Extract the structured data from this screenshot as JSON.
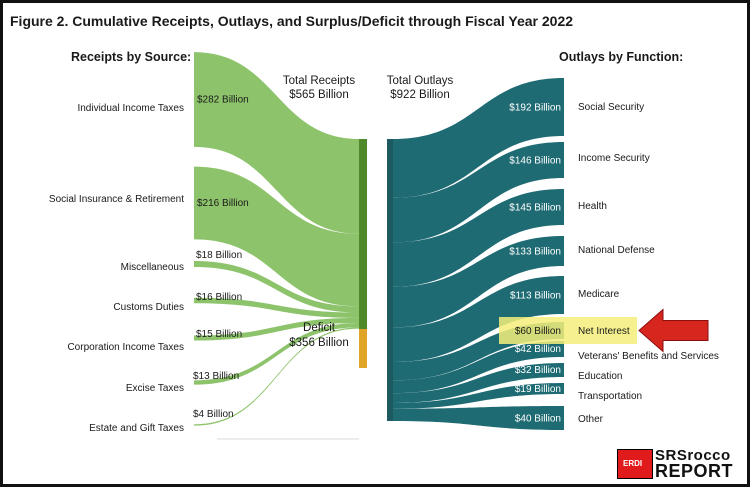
{
  "title": "Figure 2. Cumulative Receipts, Outlays, and Surplus/Deficit through Fiscal Year 2022",
  "receipts_header": "Receipts by Source:",
  "outlays_header": "Outlays by Function:",
  "total_receipts_line1": "Total Receipts",
  "total_receipts_line2": "$565 Billion",
  "total_outlays_line1": "Total Outlays",
  "total_outlays_line2": "$922 Billion",
  "deficit_line1": "Deficit",
  "deficit_line2": "$356 Billion",
  "colors": {
    "receipts": "#8dc36b",
    "receipts_bar": "#4f8a2a",
    "deficit": "#e0a526",
    "outlays": "#1f6b73",
    "outlays_bar": "#1d5a60",
    "highlight": "#f4ef7a",
    "arrow": "#d7261e"
  },
  "receipts": [
    {
      "name": "Individual Income Taxes",
      "label": "$282 Billion",
      "value": 282
    },
    {
      "name": "Social Insurance & Retirement",
      "label": "$216 Billion",
      "value": 216
    },
    {
      "name": "Miscellaneous",
      "label": "$18 Billion",
      "value": 18
    },
    {
      "name": "Customs Duties",
      "label": "$16 Billion",
      "value": 16
    },
    {
      "name": "Corporation Income Taxes",
      "label": "$15 Billion",
      "value": 15
    },
    {
      "name": "Excise Taxes",
      "label": "$13 Billion",
      "value": 13
    },
    {
      "name": "Estate and Gift Taxes",
      "label": "$4 Billion",
      "value": 4
    }
  ],
  "outlays": [
    {
      "name": "Social Security",
      "label": "$192 Billion",
      "value": 192
    },
    {
      "name": "Income Security",
      "label": "$146 Billion",
      "value": 146
    },
    {
      "name": "Health",
      "label": "$145 Billion",
      "value": 145
    },
    {
      "name": "National Defense",
      "label": "$133 Billion",
      "value": 133
    },
    {
      "name": "Medicare",
      "label": "$113 Billion",
      "value": 113
    },
    {
      "name": "Net Interest",
      "label": "$60 Billion",
      "value": 60,
      "highlight": true
    },
    {
      "name": "Veterans' Benefits and Services",
      "label": "$42 Billion",
      "value": 42
    },
    {
      "name": "Education",
      "label": "$32 Billion",
      "value": 32
    },
    {
      "name": "Transportation",
      "label": "$19 Billion",
      "value": 19
    },
    {
      "name": "Other",
      "label": "$40 Billion",
      "value": 40
    }
  ],
  "deficit_value": 356,
  "logo": {
    "badge": "ERDI",
    "line1": "SRSrocco",
    "line2": "REPORT"
  }
}
